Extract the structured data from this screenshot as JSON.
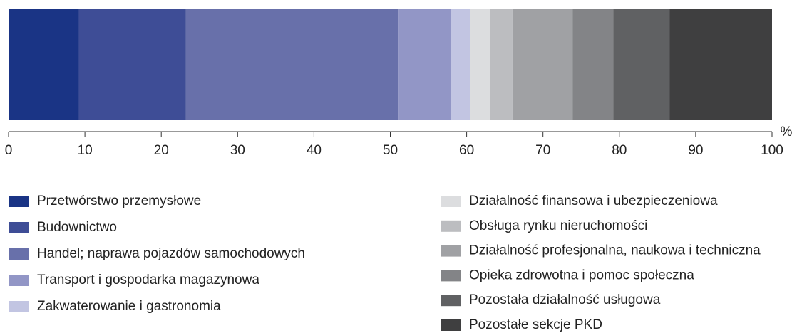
{
  "chart_data": {
    "type": "bar",
    "orientation": "horizontal",
    "stacked": true,
    "categories": [
      null
    ],
    "x_unit": "%",
    "xlim": [
      0,
      100
    ],
    "xticks": [
      0,
      10,
      20,
      30,
      40,
      50,
      60,
      70,
      80,
      90,
      100
    ],
    "series": [
      {
        "name": "Przetwórstwo przemysłowe",
        "color": "#1a3485",
        "values": [
          9.2
        ]
      },
      {
        "name": "Budownictwo",
        "color": "#3e4d96",
        "values": [
          14.0
        ]
      },
      {
        "name": "Handel; naprawa pojazdów samochodowych",
        "color": "#6870aa",
        "values": [
          27.9
        ]
      },
      {
        "name": "Transport i gospodarka magazynowa",
        "color": "#9296c6",
        "values": [
          6.8
        ]
      },
      {
        "name": "Zakwaterowanie i gastronomia",
        "color": "#c2c5e2",
        "values": [
          2.6
        ]
      },
      {
        "name": "Działalność finansowa i ubezpieczeniowa",
        "color": "#dcdddf",
        "values": [
          2.6
        ]
      },
      {
        "name": "Obsługa rynku nieruchomości",
        "color": "#bcbdc0",
        "values": [
          2.9
        ]
      },
      {
        "name": "Działalność profesjonalna, naukowa i techniczna",
        "color": "#a0a1a4",
        "values": [
          7.9
        ]
      },
      {
        "name": "Opieka zdrowotna i pomoc społeczna",
        "color": "#838487",
        "values": [
          5.3
        ]
      },
      {
        "name": "Pozostała działalność usługowa",
        "color": "#606163",
        "values": [
          7.4
        ]
      },
      {
        "name": "Pozostałe sekcje PKD",
        "color": "#3f3f40",
        "values": [
          13.4
        ]
      }
    ]
  }
}
